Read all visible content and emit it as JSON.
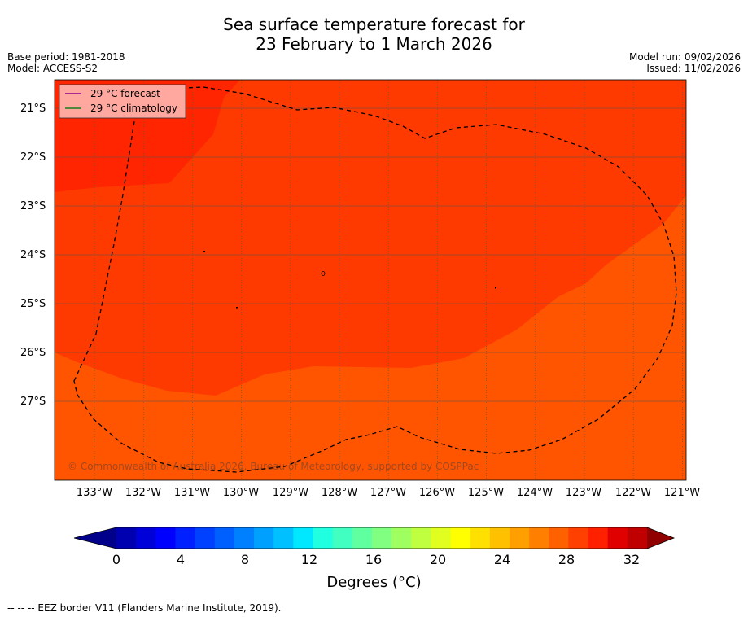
{
  "title_line1": "Sea surface temperature forecast for",
  "title_line2": "23 February to 1 March 2026",
  "base_period": "Base period: 1981-2018",
  "model": "Model: ACCESS-S2",
  "model_run": "Model run: 09/02/2026",
  "issued": "Issued: 11/02/2026",
  "legend": {
    "forecast": "29 °C  forecast",
    "climatology": "29 °C  climatology",
    "forecast_color": "#8b008b",
    "climatology_color": "#1a7a1a"
  },
  "copyright": "© Commonwealth of Australia 2026, Bureau of Meteorology, supported by COSPPac",
  "lat_labels": [
    "21°S",
    "22°S",
    "23°S",
    "24°S",
    "25°S",
    "26°S",
    "27°S"
  ],
  "lon_labels": [
    "133°W",
    "132°W",
    "131°W",
    "130°W",
    "129°W",
    "128°W",
    "127°W",
    "126°W",
    "125°W",
    "124°W",
    "123°W",
    "122°W",
    "121°W"
  ],
  "colorbar": {
    "title": "Degrees (°C)",
    "ticks": [
      "0",
      "4",
      "8",
      "12",
      "16",
      "20",
      "24",
      "28",
      "32"
    ],
    "colors": [
      "#00008b",
      "#0000b0",
      "#0000d8",
      "#0000ff",
      "#0020ff",
      "#0040ff",
      "#0060ff",
      "#0080ff",
      "#00a0ff",
      "#00c0ff",
      "#00e8ff",
      "#20ffe0",
      "#40ffc0",
      "#60ffa0",
      "#80ff80",
      "#a0ff60",
      "#c0ff40",
      "#e0ff20",
      "#ffff00",
      "#ffe000",
      "#ffc000",
      "#ffa000",
      "#ff8000",
      "#ff6000",
      "#ff4000",
      "#ff2000",
      "#e00000",
      "#c00000",
      "#900000"
    ]
  },
  "regions": {
    "colors": {
      "t27_28": "#ff5500",
      "t28_29": "#ff3a00",
      "t29_30": "#ff2500"
    }
  },
  "footer": "--  --  -- EEZ border V11 (Flanders Marine Institute, 2019)."
}
